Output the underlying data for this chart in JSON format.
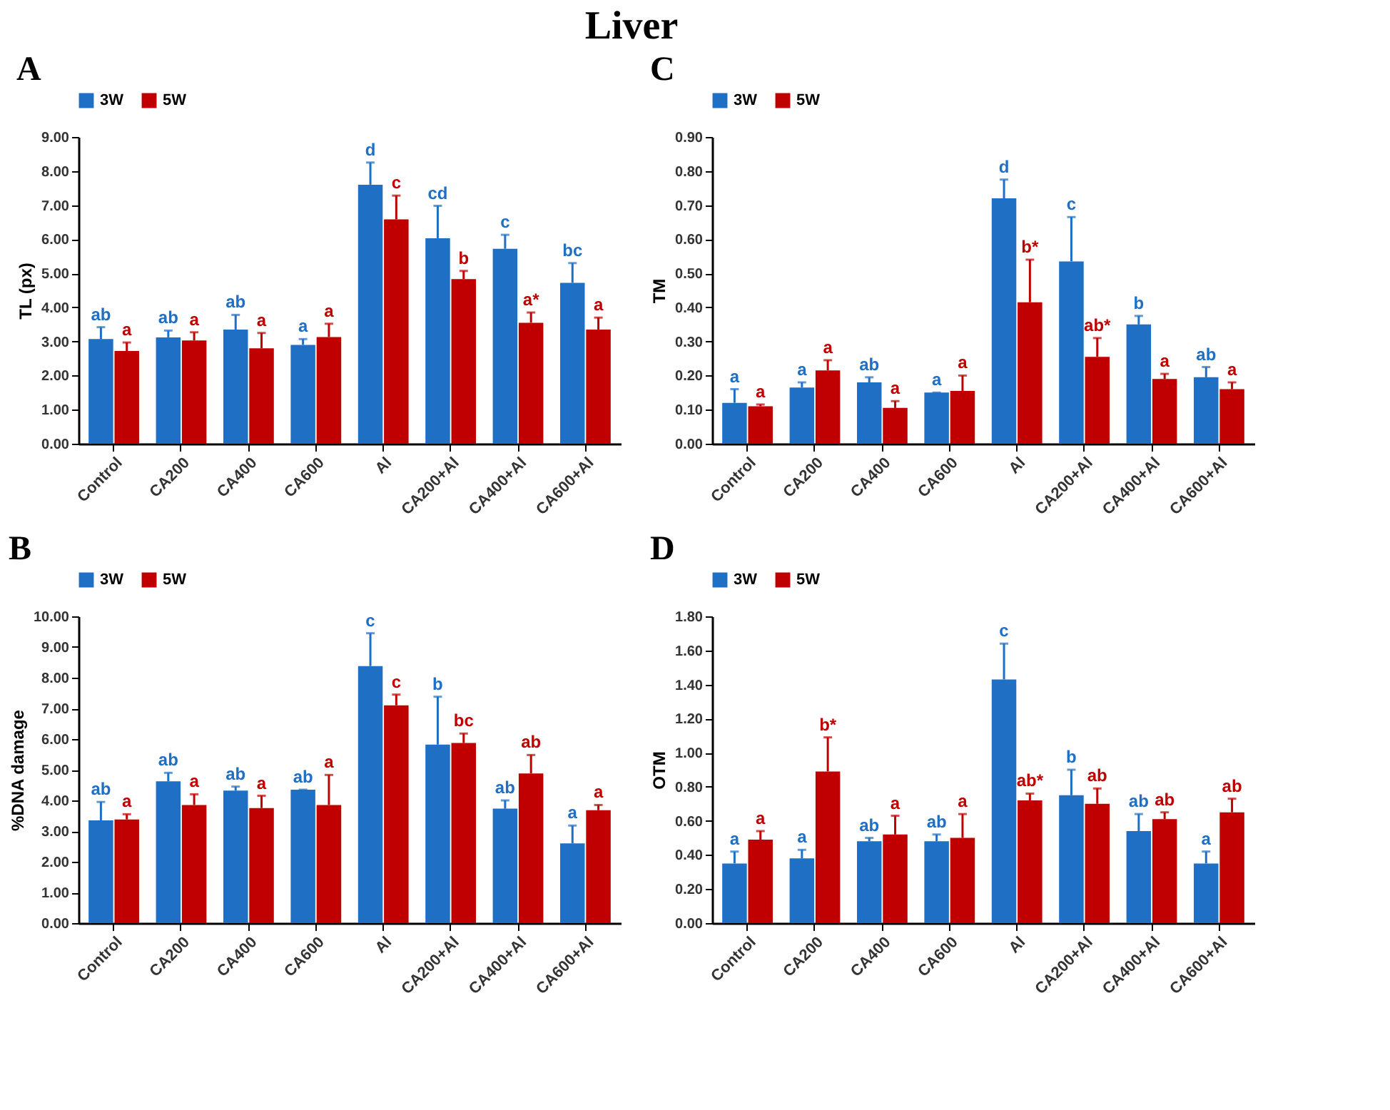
{
  "chart_data": [
    {
      "type": "bar",
      "title": "A",
      "annotations": [
        "Liver"
      ],
      "ylabel": "TL (px)",
      "legend": "top",
      "grid": false,
      "categories": [
        "Control",
        "CA200",
        "CA400",
        "CA600",
        "Al",
        "CA200+Al",
        "CA400+Al",
        "CA600+Al"
      ],
      "ylim": [
        0,
        9
      ],
      "yticks": [
        {
          "value": 0,
          "label": "0.00"
        },
        {
          "value": 1,
          "label": "1.00"
        },
        {
          "value": 2,
          "label": "2.00"
        },
        {
          "value": 3,
          "label": "3.00"
        },
        {
          "value": 4,
          "label": "4.00"
        },
        {
          "value": 5,
          "label": "5.00"
        },
        {
          "value": 6,
          "label": "6.00"
        },
        {
          "value": 7,
          "label": "7.00"
        },
        {
          "value": 8,
          "label": "8.00"
        },
        {
          "value": 9,
          "label": "9.00"
        }
      ],
      "series": [
        {
          "name": "3W",
          "color": "#1f6fc5",
          "values": [
            3.07,
            3.12,
            3.35,
            2.9,
            7.6,
            6.03,
            5.72,
            4.72
          ],
          "errors": [
            [
              3.07,
              3.42
            ],
            [
              3.12,
              3.32
            ],
            [
              3.35,
              3.78
            ],
            [
              2.9,
              3.07
            ],
            [
              7.6,
              8.25
            ],
            [
              6.03,
              6.98
            ],
            [
              5.72,
              6.13
            ],
            [
              4.72,
              5.3
            ]
          ],
          "value_labels": [
            "ab",
            "ab",
            "ab",
            "a",
            "d",
            "cd",
            "c",
            "bc"
          ]
        },
        {
          "name": "5W",
          "color": "#c00000",
          "values": [
            2.72,
            3.03,
            2.8,
            3.13,
            6.58,
            4.83,
            3.55,
            3.35
          ],
          "errors": [
            [
              2.72,
              2.97
            ],
            [
              3.03,
              3.27
            ],
            [
              2.8,
              3.25
            ],
            [
              3.13,
              3.52
            ],
            [
              6.58,
              7.28
            ],
            [
              4.83,
              5.07
            ],
            [
              3.55,
              3.85
            ],
            [
              3.35,
              3.7
            ]
          ],
          "value_labels": [
            "a",
            "a",
            "a",
            "a",
            "c",
            "b",
            "a*",
            "a"
          ]
        }
      ]
    },
    {
      "type": "bar",
      "title": "C",
      "ylabel": "TM",
      "legend": "top",
      "grid": false,
      "categories": [
        "Control",
        "CA200",
        "CA400",
        "CA600",
        "Al",
        "CA200+Al",
        "CA400+Al",
        "CA600+Al"
      ],
      "ylim": [
        0,
        0.9
      ],
      "yticks": [
        {
          "value": 0,
          "label": "0.00"
        },
        {
          "value": 0.1,
          "label": "0.10"
        },
        {
          "value": 0.2,
          "label": "0.20"
        },
        {
          "value": 0.3,
          "label": "0.30"
        },
        {
          "value": 0.4,
          "label": "0.40"
        },
        {
          "value": 0.5,
          "label": "0.50"
        },
        {
          "value": 0.6,
          "label": "0.60"
        },
        {
          "value": 0.7,
          "label": "0.70"
        },
        {
          "value": 0.8,
          "label": "0.80"
        },
        {
          "value": 0.9,
          "label": "0.90"
        }
      ],
      "series": [
        {
          "name": "3W",
          "color": "#1f6fc5",
          "values": [
            0.12,
            0.165,
            0.18,
            0.15,
            0.72,
            0.535,
            0.35,
            0.195
          ],
          "errors": [
            [
              0.12,
              0.16
            ],
            [
              0.165,
              0.18
            ],
            [
              0.18,
              0.195
            ],
            [
              0.15,
              0.15
            ],
            [
              0.72,
              0.775
            ],
            [
              0.535,
              0.665
            ],
            [
              0.35,
              0.375
            ],
            [
              0.195,
              0.225
            ]
          ],
          "value_labels": [
            "a",
            "a",
            "ab",
            "a",
            "d",
            "c",
            "b",
            "ab"
          ]
        },
        {
          "name": "5W",
          "color": "#c00000",
          "values": [
            0.11,
            0.215,
            0.105,
            0.155,
            0.415,
            0.255,
            0.19,
            0.16
          ],
          "errors": [
            [
              0.11,
              0.115
            ],
            [
              0.215,
              0.245
            ],
            [
              0.105,
              0.125
            ],
            [
              0.155,
              0.2
            ],
            [
              0.415,
              0.54
            ],
            [
              0.255,
              0.31
            ],
            [
              0.19,
              0.205
            ],
            [
              0.16,
              0.18
            ]
          ],
          "value_labels": [
            "a",
            "a",
            "a",
            "a",
            "b*",
            "ab*",
            "a",
            "a"
          ]
        }
      ]
    },
    {
      "type": "bar",
      "title": "B",
      "ylabel": "%DNA damage",
      "legend": "top",
      "grid": false,
      "categories": [
        "Control",
        "CA200",
        "CA400",
        "CA600",
        "Al",
        "CA200+Al",
        "CA400+Al",
        "CA600+Al"
      ],
      "ylim": [
        0,
        10
      ],
      "yticks": [
        {
          "value": 0,
          "label": "0.00"
        },
        {
          "value": 1,
          "label": "1.00"
        },
        {
          "value": 2,
          "label": "2.00"
        },
        {
          "value": 3,
          "label": "3.00"
        },
        {
          "value": 4,
          "label": "4.00"
        },
        {
          "value": 5,
          "label": "5.00"
        },
        {
          "value": 6,
          "label": "6.00"
        },
        {
          "value": 7,
          "label": "7.00"
        },
        {
          "value": 8,
          "label": "8.00"
        },
        {
          "value": 9,
          "label": "9.00"
        },
        {
          "value": 10,
          "label": "10.00"
        }
      ],
      "series": [
        {
          "name": "3W",
          "color": "#1f6fc5",
          "values": [
            3.35,
            4.62,
            4.32,
            4.35,
            8.38,
            5.82,
            3.73,
            2.6
          ],
          "errors": [
            [
              3.35,
              3.95
            ],
            [
              4.62,
              4.9
            ],
            [
              4.32,
              4.45
            ],
            [
              4.35,
              4.35
            ],
            [
              8.38,
              9.45
            ],
            [
              5.82,
              7.38
            ],
            [
              3.73,
              4.0
            ],
            [
              2.6,
              3.18
            ]
          ],
          "value_labels": [
            "ab",
            "ab",
            "ab",
            "ab",
            "c",
            "b",
            "ab",
            "a"
          ]
        },
        {
          "name": "5W",
          "color": "#c00000",
          "values": [
            3.38,
            3.85,
            3.75,
            3.85,
            7.1,
            5.87,
            4.88,
            3.68
          ],
          "errors": [
            [
              3.38,
              3.55
            ],
            [
              3.85,
              4.2
            ],
            [
              3.75,
              4.15
            ],
            [
              3.85,
              4.83
            ],
            [
              7.1,
              7.45
            ],
            [
              5.87,
              6.18
            ],
            [
              4.88,
              5.48
            ],
            [
              3.68,
              3.85
            ]
          ],
          "value_labels": [
            "a",
            "a",
            "a",
            "a",
            "c",
            "bc",
            "ab",
            "a"
          ]
        }
      ]
    },
    {
      "type": "bar",
      "title": "D",
      "ylabel": "OTM",
      "legend": "top",
      "grid": false,
      "categories": [
        "Control",
        "CA200",
        "CA400",
        "CA600",
        "Al",
        "CA200+Al",
        "CA400+Al",
        "CA600+Al"
      ],
      "ylim": [
        0,
        1.8
      ],
      "yticks": [
        {
          "value": 0,
          "label": "0.00"
        },
        {
          "value": 0.2,
          "label": "0.20"
        },
        {
          "value": 0.4,
          "label": "0.40"
        },
        {
          "value": 0.6,
          "label": "0.60"
        },
        {
          "value": 0.8,
          "label": "0.80"
        },
        {
          "value": 1.0,
          "label": "1.00"
        },
        {
          "value": 1.2,
          "label": "1.20"
        },
        {
          "value": 1.4,
          "label": "1.40"
        },
        {
          "value": 1.6,
          "label": "1.60"
        },
        {
          "value": 1.8,
          "label": "1.80"
        }
      ],
      "series": [
        {
          "name": "3W",
          "color": "#1f6fc5",
          "values": [
            0.35,
            0.38,
            0.48,
            0.48,
            1.43,
            0.75,
            0.54,
            0.35
          ],
          "errors": [
            [
              0.35,
              0.42
            ],
            [
              0.38,
              0.43
            ],
            [
              0.48,
              0.5
            ],
            [
              0.48,
              0.52
            ],
            [
              1.43,
              1.64
            ],
            [
              0.75,
              0.9
            ],
            [
              0.54,
              0.64
            ],
            [
              0.35,
              0.42
            ]
          ],
          "value_labels": [
            "a",
            "a",
            "ab",
            "ab",
            "c",
            "b",
            "ab",
            "a"
          ]
        },
        {
          "name": "5W",
          "color": "#c00000",
          "values": [
            0.49,
            0.89,
            0.52,
            0.5,
            0.72,
            0.7,
            0.61,
            0.65
          ],
          "errors": [
            [
              0.49,
              0.54
            ],
            [
              0.89,
              1.09
            ],
            [
              0.52,
              0.63
            ],
            [
              0.5,
              0.64
            ],
            [
              0.72,
              0.76
            ],
            [
              0.7,
              0.79
            ],
            [
              0.61,
              0.65
            ],
            [
              0.65,
              0.73
            ]
          ],
          "value_labels": [
            "a",
            "b*",
            "a",
            "a",
            "ab*",
            "ab",
            "ab",
            "ab"
          ]
        }
      ]
    }
  ]
}
